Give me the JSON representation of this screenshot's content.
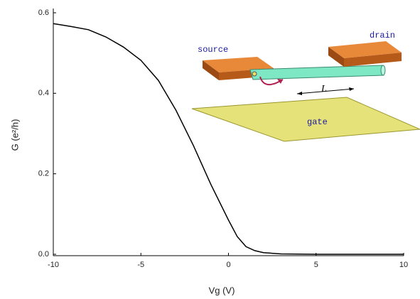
{
  "chart_data": {
    "type": "line",
    "xlabel": "Vg (V)",
    "ylabel": "G (e²/h)",
    "x": [
      -10,
      -9,
      -8,
      -7,
      -6,
      -5,
      -4,
      -3,
      -2,
      -1,
      0,
      0.5,
      1,
      1.5,
      2,
      3,
      5,
      10
    ],
    "series": [
      {
        "color": "#000000",
        "values": [
          0.573,
          0.566,
          0.558,
          0.54,
          0.515,
          0.482,
          0.432,
          0.358,
          0.27,
          0.173,
          0.085,
          0.044,
          0.019,
          0.009,
          0.004,
          0.001,
          0,
          0
        ]
      }
    ],
    "xlim": [
      -10,
      10
    ],
    "xticks": [
      -10,
      -5,
      0,
      5,
      10
    ],
    "ylim": [
      -0.0035,
      0.6
    ],
    "yticks": [
      {
        "value": 0,
        "label": "0.0"
      },
      0.2,
      0.4,
      0.6
    ],
    "annotations": [
      "source",
      "drain",
      "gate",
      "L"
    ]
  }
}
